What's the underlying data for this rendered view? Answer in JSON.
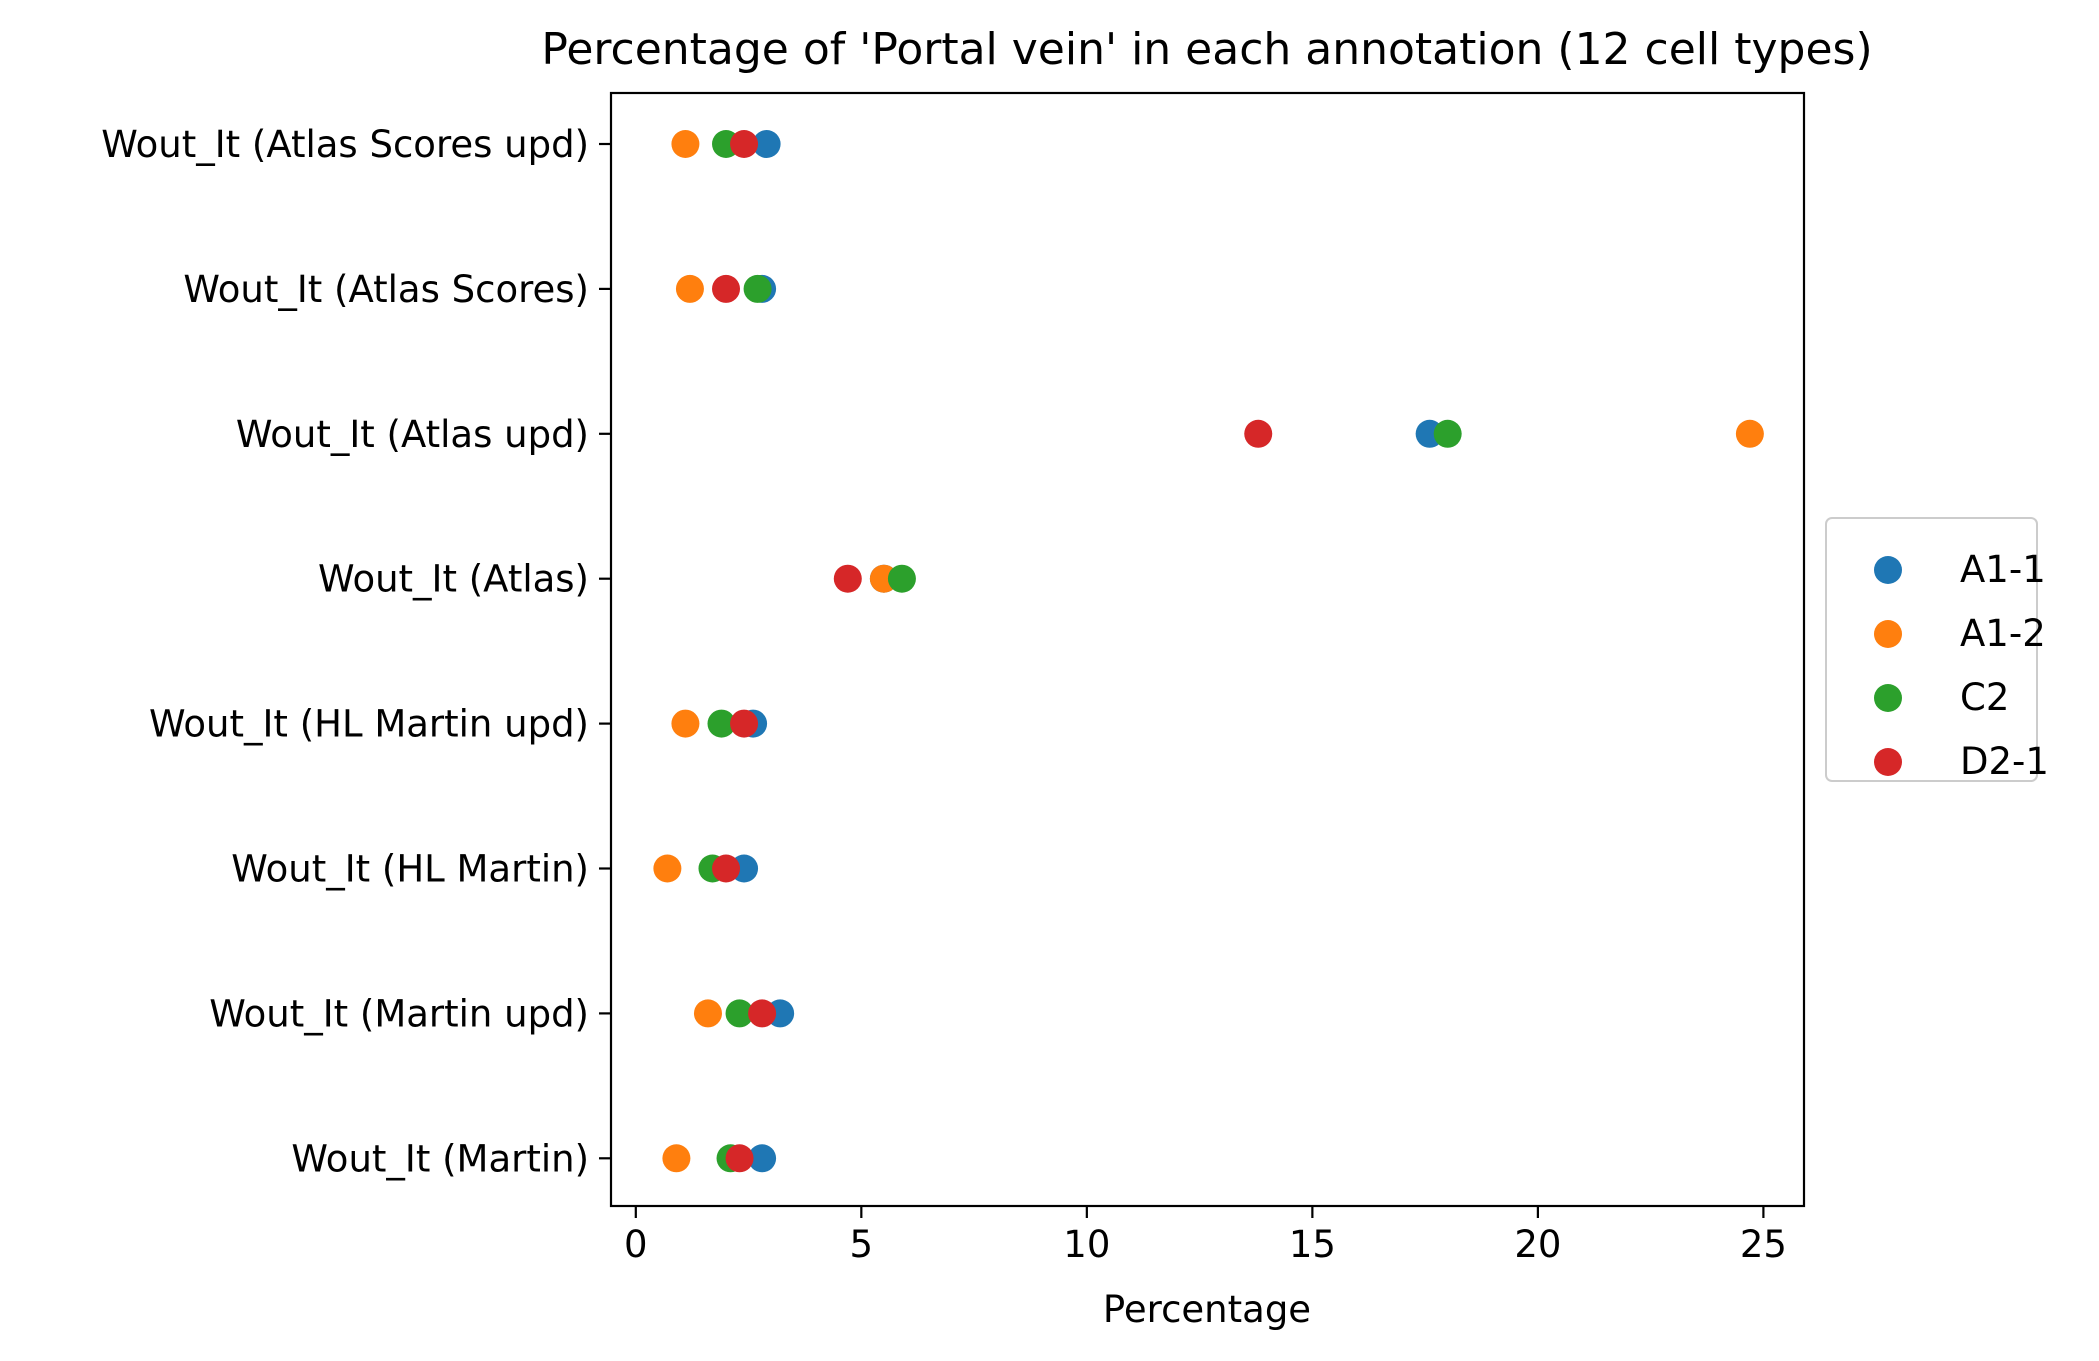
{
  "chart_data": {
    "type": "scatter",
    "title": "Percentage of 'Portal vein' in each annotation (12 cell types)",
    "xlabel": "Percentage",
    "ylabel": "",
    "xlim": [
      -0.55,
      25.9
    ],
    "xticks": [
      0,
      5,
      10,
      15,
      20,
      25
    ],
    "categories": [
      "Wout_It (Atlas Scores upd)",
      "Wout_It (Atlas Scores)",
      "Wout_It (Atlas upd)",
      "Wout_It (Atlas)",
      "Wout_It (HL Martin upd)",
      "Wout_It (HL Martin)",
      "Wout_It (Martin upd)",
      "Wout_It (Martin)"
    ],
    "series": [
      {
        "name": "A1-1",
        "color": "#1f77b4",
        "values": [
          2.9,
          2.8,
          17.6,
          5.5,
          2.6,
          2.4,
          3.2,
          2.8
        ]
      },
      {
        "name": "A1-2",
        "color": "#ff7f0e",
        "values": [
          1.1,
          1.2,
          24.7,
          5.5,
          1.1,
          0.7,
          1.6,
          0.9
        ]
      },
      {
        "name": "C2",
        "color": "#2ca02c",
        "values": [
          2.0,
          2.7,
          18.0,
          5.9,
          1.9,
          1.7,
          2.3,
          2.1
        ]
      },
      {
        "name": "D2-1",
        "color": "#d62728",
        "values": [
          2.4,
          2.0,
          13.8,
          4.7,
          2.4,
          2.0,
          2.8,
          2.3
        ]
      }
    ],
    "grid": false,
    "legend_position": "center-right outside"
  }
}
